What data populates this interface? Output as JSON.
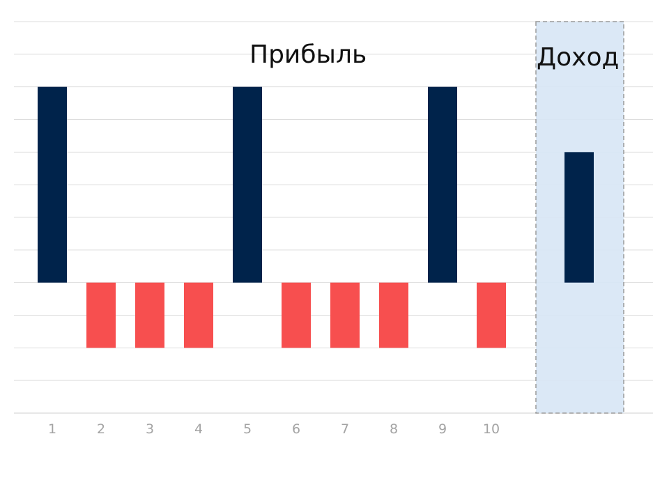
{
  "chart_data": {
    "type": "bar",
    "title": "Прибыль",
    "categories": [
      "1",
      "2",
      "3",
      "4",
      "5",
      "6",
      "7",
      "8",
      "9",
      "10"
    ],
    "values": [
      6,
      -2,
      -2,
      -2,
      6,
      -2,
      -2,
      -2,
      6,
      -2
    ],
    "ylim": [
      -4,
      8
    ],
    "grid": true,
    "positive_color": "#00234B",
    "negative_color": "#F74F4F",
    "summary_panel": {
      "title": "Доход",
      "value": 4,
      "background_color": "#D7E6F5",
      "border_color": "#9A9A9A",
      "bar_color": "#00234B"
    }
  }
}
